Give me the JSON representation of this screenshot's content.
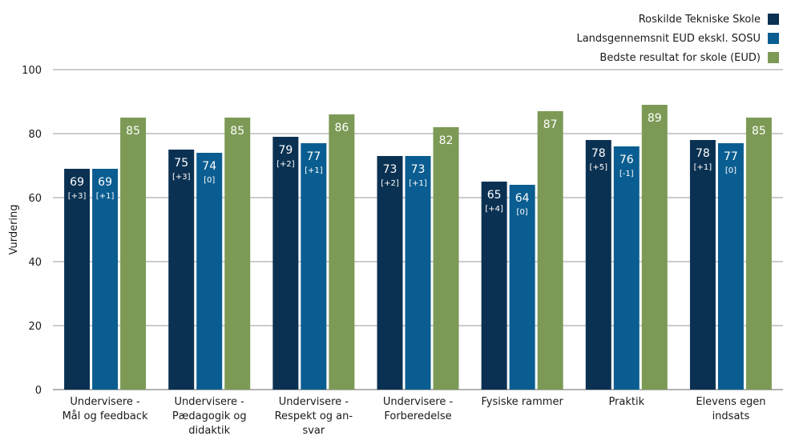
{
  "chart_data": {
    "type": "bar",
    "ylabel": "Vurdering",
    "ylim": [
      0,
      100
    ],
    "yticks": [
      0,
      20,
      40,
      60,
      80,
      100
    ],
    "grid": "horizontal",
    "legend_position": "top-right",
    "categories": [
      [
        "Undervisere -",
        "Mål og feedback"
      ],
      [
        "Undervisere -",
        "Pædagogik og",
        "didaktik"
      ],
      [
        "Undervisere -",
        "Respekt og an-",
        "svar"
      ],
      [
        "Undervisere -",
        "Forberedelse"
      ],
      [
        "Fysiske rammer"
      ],
      [
        "Praktik"
      ],
      [
        "Elevens egen",
        "indsats"
      ]
    ],
    "series": [
      {
        "name": "Roskilde Tekniske Skole",
        "color": "#0b3152",
        "values": [
          69,
          75,
          79,
          73,
          65,
          78,
          78
        ],
        "changes": [
          "[+3]",
          "[+3]",
          "[+2]",
          "[+2]",
          "[+4]",
          "[+5]",
          "[+1]"
        ]
      },
      {
        "name": "Landsgennemsnit EUD ekskl. SOSU",
        "color": "#0a5d91",
        "values": [
          69,
          74,
          77,
          73,
          64,
          76,
          77
        ],
        "changes": [
          "[+1]",
          "[0]",
          "[+1]",
          "[+1]",
          "[0]",
          "[-1]",
          "[0]"
        ]
      },
      {
        "name": "Bedste resultat for skole (EUD)",
        "color": "#7c9a55",
        "values": [
          85,
          85,
          86,
          82,
          87,
          89,
          85
        ],
        "changes": []
      }
    ]
  }
}
